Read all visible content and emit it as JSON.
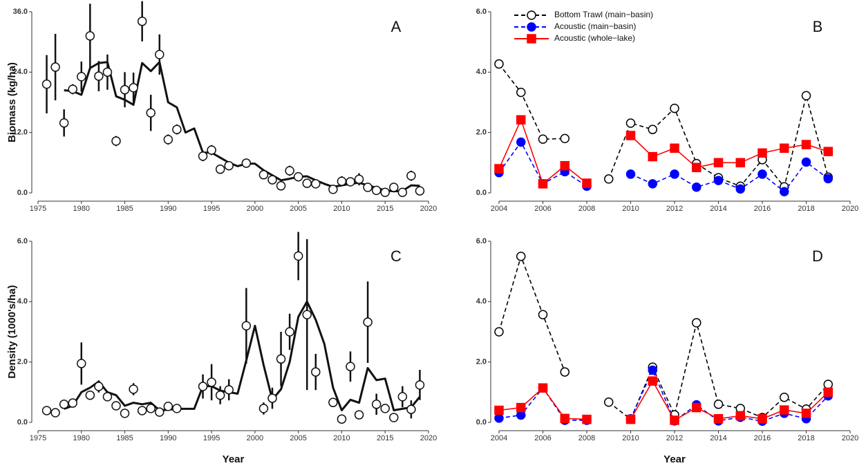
{
  "chart_data": [
    {
      "type": "scatter",
      "panel_label": "A",
      "y_label": "Biomass (kg/ha)",
      "x": [
        1976,
        1977,
        1978,
        1979,
        1980,
        1981,
        1982,
        1983,
        1984,
        1985,
        1986,
        1987,
        1988,
        1989,
        1990,
        1991,
        1994,
        1995,
        1996,
        1997,
        1999,
        2001,
        2002,
        2003,
        2004,
        2005,
        2006,
        2007,
        2009,
        2010,
        2011,
        2012,
        2013,
        2014,
        2015,
        2016,
        2017,
        2018,
        2019
      ],
      "values": [
        21.6,
        25.0,
        13.9,
        20.6,
        23.1,
        31.2,
        23.2,
        24.0,
        10.3,
        20.5,
        20.9,
        34.1,
        15.9,
        27.5,
        10.6,
        12.6,
        7.3,
        8.5,
        4.7,
        5.4,
        5.9,
        3.6,
        2.6,
        1.4,
        4.4,
        3.2,
        1.9,
        1.8,
        0.7,
        2.3,
        2.2,
        2.7,
        1.1,
        0.5,
        0.1,
        1.1,
        0.1,
        3.4,
        0.4
      ],
      "errors": [
        5.8,
        6.6,
        2.7,
        1.0,
        3.0,
        6.4,
        3.0,
        3.5,
        1.0,
        3.5,
        3.0,
        4.0,
        3.6,
        4.0,
        1.0,
        1.0,
        1.0,
        1.0,
        0.8,
        0.8,
        0.8,
        0.5,
        0.5,
        0.5,
        1.0,
        0.8,
        0.5,
        0.5,
        0.3,
        1.0,
        0.8,
        1.2,
        0.5,
        0.3,
        0.2,
        0.5,
        0.2,
        1.0,
        0.4
      ],
      "trend": {
        "x": [
          1978,
          1979,
          1980,
          1981,
          1982,
          1983,
          1984,
          1985,
          1986,
          1987,
          1988,
          1989,
          1990,
          1991,
          1992,
          1993,
          1994,
          1995,
          1996,
          1997,
          1998,
          1999,
          2000,
          2001,
          2002,
          2003,
          2004,
          2005,
          2006,
          2007,
          2008,
          2009,
          2010,
          2011,
          2012,
          2013,
          2014,
          2015,
          2016,
          2017,
          2018,
          2019
        ],
        "values": [
          20.4,
          20.2,
          19.5,
          24.8,
          25.8,
          26.0,
          19.2,
          18.5,
          17.5,
          25.8,
          24.2,
          26.0,
          18.0,
          17.0,
          12.0,
          12.8,
          8.0,
          8.0,
          7.0,
          6.0,
          5.3,
          5.8,
          5.8,
          4.5,
          3.5,
          2.5,
          2.8,
          3.2,
          3.3,
          2.5,
          1.8,
          1.2,
          1.5,
          1.8,
          2.0,
          1.5,
          1.0,
          0.5,
          0.3,
          0.4,
          1.5,
          1.4
        ]
      },
      "xlim": [
        1975,
        2020
      ],
      "xticks": [
        1975,
        1980,
        1985,
        1990,
        1995,
        2000,
        2005,
        2010,
        2015,
        2020
      ],
      "ylim": [
        0,
        36
      ],
      "yticks": [
        {
          "value": 0,
          "label": "0.0"
        },
        {
          "value": 12,
          "label": "12.0"
        },
        {
          "value": 24,
          "label": "24.0"
        },
        {
          "value": 36,
          "label": "36.0"
        }
      ]
    },
    {
      "type": "line",
      "panel_label": "B",
      "legend": true,
      "x": [
        2004,
        2005,
        2006,
        2007,
        2008,
        2009,
        2010,
        2011,
        2012,
        2013,
        2014,
        2015,
        2016,
        2017,
        2018,
        2019
      ],
      "series": [
        {
          "name": "Bottom Trawl (main−basin)",
          "color": "#000000",
          "marker": "circle",
          "filled": false,
          "dashed": true,
          "values": [
            4.27,
            3.33,
            1.78,
            1.8,
            null,
            0.46,
            2.31,
            2.1,
            2.8,
            0.97,
            0.5,
            0.22,
            1.1,
            0.2,
            3.22,
            0.52
          ]
        },
        {
          "name": "Acoustic (main−basin)",
          "color": "#0000ff",
          "marker": "circle",
          "filled": true,
          "dashed": true,
          "values": [
            0.67,
            1.68,
            0.3,
            0.7,
            0.22,
            null,
            0.62,
            0.3,
            0.62,
            0.19,
            0.41,
            0.13,
            0.62,
            0.04,
            1.02,
            0.47
          ]
        },
        {
          "name": "Acoustic (whole−lake)",
          "color": "#ff0000",
          "marker": "square",
          "filled": true,
          "dashed": false,
          "values": [
            0.8,
            2.42,
            0.3,
            0.9,
            0.32,
            null,
            1.9,
            1.2,
            1.48,
            0.84,
            1.0,
            1.0,
            1.32,
            1.48,
            1.6,
            1.37
          ]
        }
      ],
      "xlim": [
        2004,
        2020
      ],
      "xticks": [
        2004,
        2006,
        2008,
        2010,
        2012,
        2014,
        2016,
        2018,
        2020
      ],
      "ylim": [
        0,
        6
      ],
      "yticks": [
        {
          "value": 0,
          "label": "0.0"
        },
        {
          "value": 2,
          "label": "2.0"
        },
        {
          "value": 4,
          "label": "4.0"
        },
        {
          "value": 6,
          "label": "6.0"
        }
      ]
    },
    {
      "type": "scatter",
      "panel_label": "C",
      "y_label": "Density (1000's/ha)",
      "x_label": "Year",
      "x": [
        1976,
        1977,
        1978,
        1979,
        1980,
        1981,
        1982,
        1983,
        1984,
        1985,
        1986,
        1987,
        1988,
        1989,
        1990,
        1991,
        1994,
        1995,
        1996,
        1997,
        1999,
        2001,
        2002,
        2003,
        2004,
        2005,
        2006,
        2007,
        2009,
        2010,
        2011,
        2012,
        2013,
        2014,
        2015,
        2016,
        2017,
        2018,
        2019
      ],
      "values": [
        0.39,
        0.32,
        0.6,
        0.64,
        1.95,
        0.9,
        1.19,
        0.85,
        0.55,
        0.3,
        1.1,
        0.39,
        0.46,
        0.34,
        0.53,
        0.46,
        1.19,
        1.33,
        0.9,
        1.08,
        3.2,
        0.46,
        0.8,
        2.1,
        3.0,
        5.51,
        3.57,
        1.67,
        0.66,
        0.11,
        1.85,
        0.25,
        3.32,
        0.6,
        0.46,
        0.16,
        0.85,
        0.43,
        1.24
      ],
      "errors": [
        0.05,
        0.05,
        0.05,
        0.05,
        0.7,
        0.15,
        0.2,
        0.15,
        0.05,
        0.05,
        0.2,
        0.05,
        0.05,
        0.05,
        0.05,
        0.05,
        0.4,
        0.6,
        0.3,
        0.35,
        1.25,
        0.2,
        0.35,
        0.9,
        0.6,
        0.8,
        2.5,
        0.6,
        0.15,
        0.1,
        0.5,
        0.05,
        1.35,
        0.35,
        0.1,
        0.05,
        0.35,
        0.3,
        0.5
      ],
      "trend": {
        "x": [
          1978,
          1979,
          1980,
          1981,
          1982,
          1983,
          1984,
          1985,
          1986,
          1987,
          1988,
          1989,
          1990,
          1991,
          1992,
          1993,
          1994,
          1995,
          1996,
          1997,
          1998,
          1999,
          2000,
          2001,
          2002,
          2003,
          2004,
          2005,
          2006,
          2007,
          2008,
          2009,
          2010,
          2011,
          2012,
          2013,
          2014,
          2015,
          2016,
          2017,
          2018,
          2019
        ],
        "values": [
          0.45,
          0.55,
          1.0,
          1.15,
          1.35,
          1.0,
          0.9,
          0.55,
          0.65,
          0.6,
          0.65,
          0.4,
          0.42,
          0.45,
          0.45,
          0.45,
          1.2,
          1.2,
          1.05,
          1.0,
          0.95,
          2.05,
          3.2,
          1.9,
          0.75,
          1.1,
          2.0,
          3.5,
          4.0,
          3.4,
          2.6,
          1.15,
          0.4,
          0.75,
          0.65,
          1.8,
          1.4,
          1.45,
          0.4,
          0.45,
          0.5,
          0.85
        ]
      },
      "xlim": [
        1975,
        2020
      ],
      "xticks": [
        1975,
        1980,
        1985,
        1990,
        1995,
        2000,
        2005,
        2010,
        2015,
        2020
      ],
      "ylim": [
        0,
        6
      ],
      "yticks": [
        {
          "value": 0,
          "label": "0.0"
        },
        {
          "value": 2,
          "label": "2.0"
        },
        {
          "value": 4,
          "label": "4.0"
        },
        {
          "value": 6,
          "label": "6.0"
        }
      ]
    },
    {
      "type": "line",
      "panel_label": "D",
      "x_label": "Year",
      "x": [
        2004,
        2005,
        2006,
        2007,
        2008,
        2009,
        2010,
        2011,
        2012,
        2013,
        2014,
        2015,
        2016,
        2017,
        2018,
        2019
      ],
      "series": [
        {
          "color": "#000000",
          "marker": "circle",
          "filled": false,
          "dashed": true,
          "values": [
            3.0,
            5.5,
            3.57,
            1.67,
            null,
            0.67,
            0.1,
            1.83,
            0.25,
            3.3,
            0.6,
            0.46,
            0.16,
            0.83,
            0.44,
            1.26
          ]
        },
        {
          "color": "#0000ff",
          "marker": "circle",
          "filled": true,
          "dashed": true,
          "values": [
            0.14,
            0.24,
            1.14,
            0.07,
            0.07,
            null,
            0.12,
            1.73,
            0.05,
            0.58,
            0.05,
            0.17,
            0.04,
            0.3,
            0.12,
            0.88
          ]
        },
        {
          "color": "#ff0000",
          "marker": "square",
          "filled": true,
          "dashed": false,
          "values": [
            0.4,
            0.49,
            1.14,
            0.13,
            0.1,
            null,
            0.1,
            1.37,
            0.07,
            0.49,
            0.12,
            0.22,
            0.12,
            0.41,
            0.3,
            1.0
          ]
        }
      ],
      "xlim": [
        2004,
        2020
      ],
      "xticks": [
        2004,
        2006,
        2008,
        2010,
        2012,
        2014,
        2016,
        2018,
        2020
      ],
      "ylim": [
        0,
        6
      ],
      "yticks": [
        {
          "value": 0,
          "label": "0.0"
        },
        {
          "value": 2,
          "label": "2.0"
        },
        {
          "value": 4,
          "label": "4.0"
        },
        {
          "value": 6,
          "label": "6.0"
        }
      ]
    }
  ]
}
